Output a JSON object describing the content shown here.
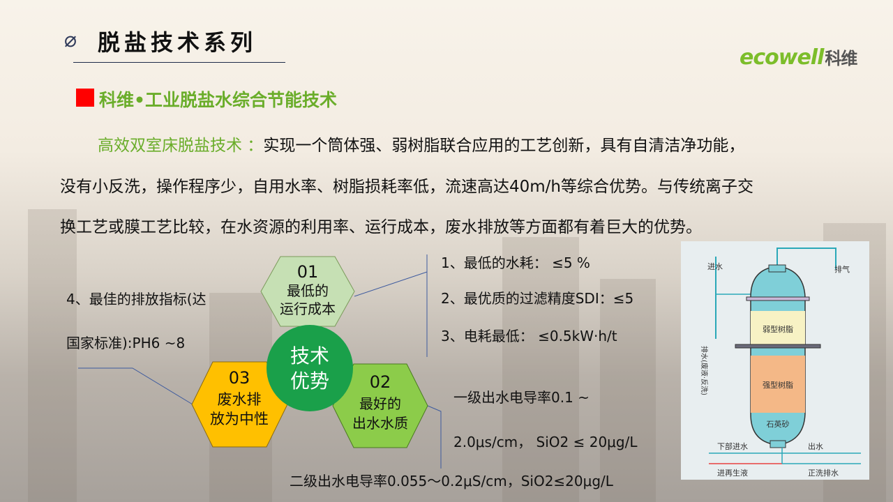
{
  "header": {
    "title": "脱盐技术系列",
    "icon": "diameter-symbol-icon"
  },
  "logo": {
    "text_latin": "ecowell",
    "text_cn": "科维",
    "color": "#7cbd2a"
  },
  "subtitle": {
    "text": "科维•工业脱盐水综合节能技术",
    "marker_color": "#ff0000",
    "color": "#6aad2a"
  },
  "paragraph": {
    "lead": "高效双室床脱盐技术 ：",
    "line1": "实现一个筒体强、弱树脂联合应用的工艺创新，具有自清洁净功能，",
    "line2": "没有小反洗，操作程序少，自用水率、树脂损耗率低，流速高达40m/h等综合优势。与传统离子交",
    "line3": "换工艺或膜工艺比较，在水资源的利用率、运行成本，废水排放等方面都有着巨大的优势。"
  },
  "advantages": {
    "center": {
      "line1": "技术",
      "line2": "优势",
      "color": "#1aa04a"
    },
    "hex1": {
      "num": "01",
      "line1": "最低的",
      "line2": "运行成本",
      "color": "#c6e0b4"
    },
    "hex2": {
      "num": "02",
      "line1": "最好的",
      "line2": "出水水质",
      "color": "#8ccc4a"
    },
    "hex3": {
      "num": "03",
      "line1": "废水排",
      "line2": "放为中性",
      "color": "#ffc000"
    }
  },
  "points_right": [
    "1、最低的水耗： ≤5 %",
    "2、最优质的过滤精度SDI：≤5",
    "3、电耗最低： ≤0.5kW·h/t"
  ],
  "point_left": {
    "line1": "4、最佳的排放指标(达",
    "line2": "国家标准):PH6 ~8"
  },
  "quality": {
    "line1": "一级出水电导率0.1 ~",
    "line2": "2.0μs/cm， SiO2 ≤ 20μg/L",
    "line3": "二级出水电导率0.055～0.2μS/cm，SiO2≤20μg/L"
  },
  "diagram": {
    "inlet": "进水",
    "vent": "排气",
    "drain": "排水(废液·反洗)",
    "weak_resin": "弱型树脂",
    "strong_resin": "强型树脂",
    "quartz": "石英砂",
    "bottom_inlet": "下部进水",
    "outlet": "出水",
    "regen_inlet": "进再生液",
    "rinse_drain": "正洗排水"
  }
}
